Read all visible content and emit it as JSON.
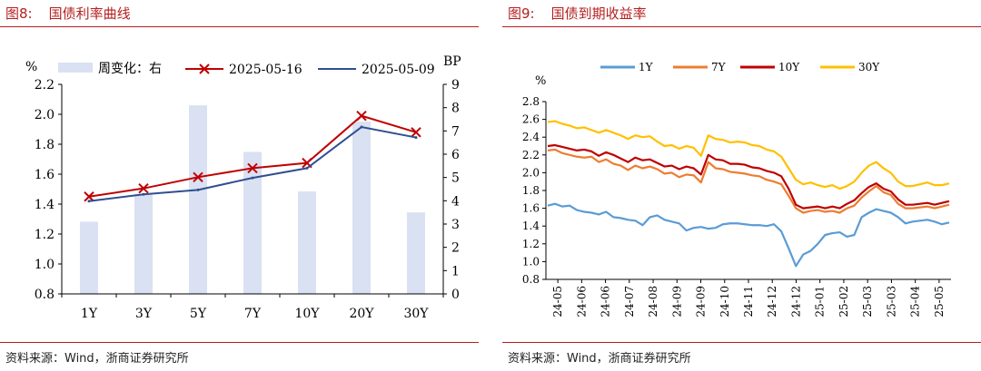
{
  "left": {
    "fig_number": "图8:",
    "fig_title": "国债利率曲线",
    "source": "资料来源：Wind，浙商证券研究所",
    "chart_data": {
      "type": "bar+line",
      "categories": [
        "1Y",
        "3Y",
        "5Y",
        "7Y",
        "10Y",
        "20Y",
        "30Y"
      ],
      "series": [
        {
          "name": "周变化：右",
          "kind": "bar",
          "axis": "right",
          "color": "#d9e1f2",
          "values": [
            3.1,
            4.3,
            8.1,
            6.1,
            4.4,
            7.4,
            3.5
          ]
        },
        {
          "name": "2025-05-16",
          "kind": "line",
          "axis": "left",
          "color": "#c00000",
          "marker": "x",
          "values": [
            1.45,
            1.505,
            1.58,
            1.64,
            1.675,
            1.99,
            1.88
          ]
        },
        {
          "name": "2025-05-09",
          "kind": "line",
          "axis": "left",
          "color": "#2f4f8f",
          "values": [
            1.42,
            1.465,
            1.495,
            1.575,
            1.64,
            1.915,
            1.845
          ]
        }
      ],
      "ylabel_left": "%",
      "ylim_left": [
        0.8,
        2.2
      ],
      "yticks_left": [
        "0.8",
        "1.0",
        "1.2",
        "1.4",
        "1.6",
        "1.8",
        "2.0",
        "2.2"
      ],
      "ylabel_right": "BP",
      "ylim_right": [
        0,
        9
      ],
      "yticks_right": [
        "0",
        "1",
        "2",
        "3",
        "4",
        "5",
        "6",
        "7",
        "8",
        "9"
      ],
      "legend": "top",
      "grid": false
    }
  },
  "right": {
    "fig_number": "图9:",
    "fig_title": "国债到期收益率",
    "source": "资料来源：Wind，浙商证券研究所",
    "chart_data": {
      "type": "line",
      "ylabel": "%",
      "ylim": [
        0.8,
        2.8
      ],
      "yticks": [
        "0.8",
        "1.0",
        "1.2",
        "1.4",
        "1.6",
        "1.8",
        "2.0",
        "2.2",
        "2.4",
        "2.6",
        "2.8"
      ],
      "xticks": [
        "24-05",
        "24-06",
        "24-06",
        "24-07",
        "24-08",
        "24-09",
        "24-09",
        "24-10",
        "24-11",
        "24-12",
        "24-12",
        "25-01",
        "25-02",
        "25-03",
        "25-03",
        "25-04",
        "25-05"
      ],
      "legend": "top",
      "grid": false,
      "series": [
        {
          "name": "1Y",
          "color": "#5b9bd5",
          "values": [
            1.63,
            1.65,
            1.62,
            1.63,
            1.58,
            1.56,
            1.55,
            1.53,
            1.56,
            1.5,
            1.49,
            1.47,
            1.46,
            1.41,
            1.5,
            1.52,
            1.47,
            1.45,
            1.43,
            1.35,
            1.38,
            1.39,
            1.37,
            1.38,
            1.42,
            1.43,
            1.43,
            1.42,
            1.41,
            1.41,
            1.4,
            1.42,
            1.34,
            1.15,
            0.95,
            1.08,
            1.12,
            1.2,
            1.3,
            1.32,
            1.33,
            1.28,
            1.3,
            1.5,
            1.55,
            1.59,
            1.57,
            1.55,
            1.5,
            1.43,
            1.45,
            1.46,
            1.47,
            1.45,
            1.42,
            1.44
          ]
        },
        {
          "name": "7Y",
          "color": "#ed7d31",
          "values": [
            2.25,
            2.26,
            2.22,
            2.2,
            2.18,
            2.17,
            2.18,
            2.12,
            2.15,
            2.1,
            2.08,
            2.03,
            2.08,
            2.05,
            2.07,
            2.04,
            1.99,
            2.0,
            1.95,
            1.98,
            1.97,
            1.89,
            2.12,
            2.05,
            2.04,
            2.01,
            2.0,
            1.99,
            1.97,
            1.96,
            1.92,
            1.9,
            1.87,
            1.74,
            1.6,
            1.55,
            1.57,
            1.58,
            1.56,
            1.57,
            1.55,
            1.6,
            1.63,
            1.72,
            1.79,
            1.85,
            1.78,
            1.75,
            1.65,
            1.6,
            1.6,
            1.61,
            1.62,
            1.6,
            1.62,
            1.64
          ]
        },
        {
          "name": "10Y",
          "color": "#c00000",
          "values": [
            2.3,
            2.31,
            2.29,
            2.27,
            2.25,
            2.26,
            2.24,
            2.19,
            2.23,
            2.2,
            2.16,
            2.12,
            2.17,
            2.14,
            2.15,
            2.11,
            2.07,
            2.08,
            2.04,
            2.07,
            2.05,
            1.98,
            2.2,
            2.15,
            2.14,
            2.1,
            2.1,
            2.09,
            2.06,
            2.05,
            2.02,
            2.0,
            1.96,
            1.82,
            1.64,
            1.6,
            1.61,
            1.62,
            1.6,
            1.62,
            1.6,
            1.65,
            1.69,
            1.77,
            1.84,
            1.88,
            1.82,
            1.79,
            1.7,
            1.64,
            1.64,
            1.65,
            1.66,
            1.64,
            1.66,
            1.68
          ]
        },
        {
          "name": "30Y",
          "color": "#ffc000",
          "values": [
            2.57,
            2.58,
            2.55,
            2.53,
            2.5,
            2.51,
            2.48,
            2.45,
            2.48,
            2.45,
            2.42,
            2.38,
            2.42,
            2.4,
            2.41,
            2.35,
            2.3,
            2.31,
            2.27,
            2.3,
            2.28,
            2.19,
            2.42,
            2.38,
            2.37,
            2.34,
            2.35,
            2.34,
            2.31,
            2.3,
            2.26,
            2.24,
            2.18,
            2.05,
            1.92,
            1.87,
            1.89,
            1.86,
            1.84,
            1.86,
            1.82,
            1.85,
            1.9,
            2.0,
            2.08,
            2.12,
            2.05,
            2.0,
            1.9,
            1.85,
            1.85,
            1.87,
            1.89,
            1.86,
            1.86,
            1.88
          ]
        }
      ]
    }
  }
}
